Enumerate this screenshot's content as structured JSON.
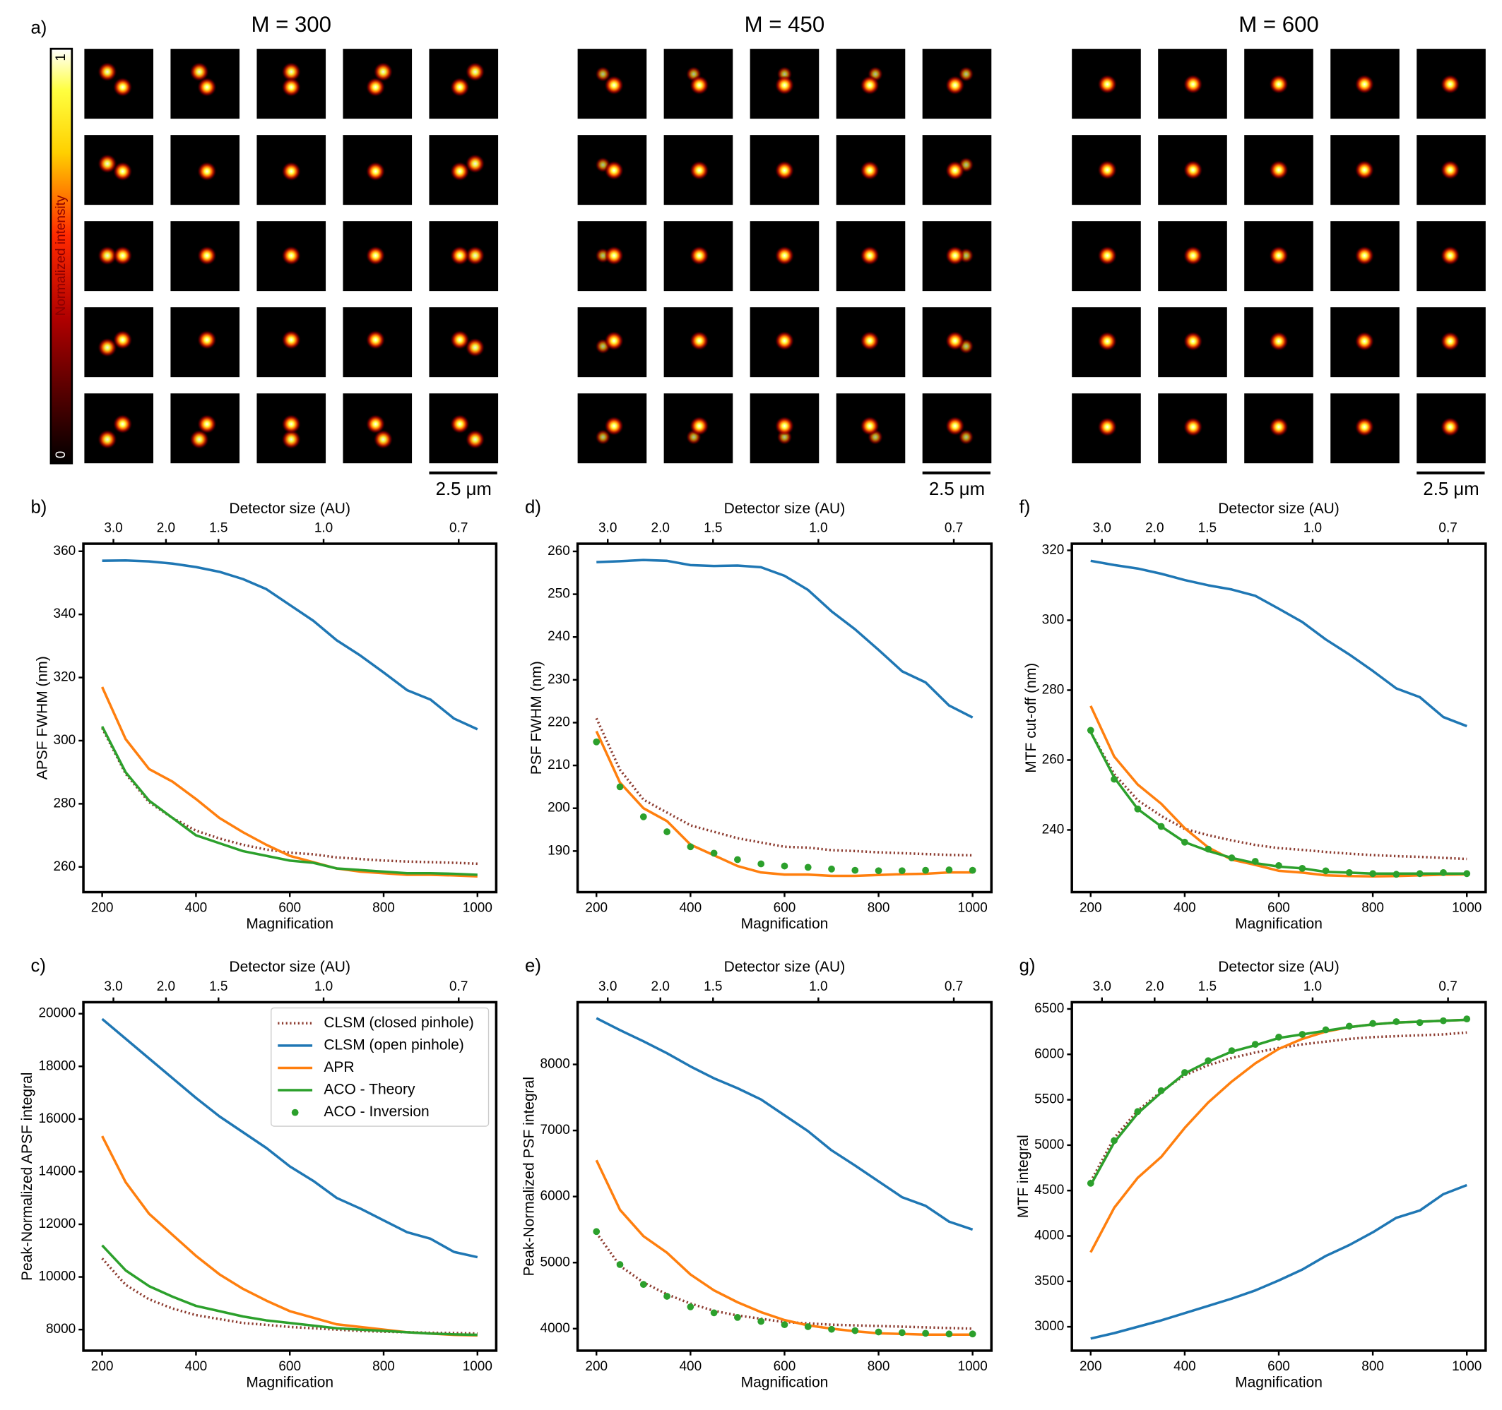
{
  "image_grid": {
    "label": "a)",
    "titles": [
      "M = 300",
      "M = 450",
      "M = 600"
    ],
    "colorbar": {
      "label": "Normalized intensity",
      "ticks": [
        0,
        1
      ]
    },
    "scale_bars": [
      "2.5 μm",
      "2.5 μm",
      "2.5 μm"
    ]
  },
  "chart_data": [
    {
      "type": "line",
      "label": "b)",
      "xlabel": "Magnification",
      "ylabel": "APSF FWHM (nm)",
      "x2label": "Detector size (AU)",
      "x": [
        200,
        250,
        300,
        350,
        400,
        450,
        500,
        550,
        600,
        650,
        700,
        750,
        800,
        850,
        900,
        950,
        1000
      ],
      "xlim": [
        160,
        1040
      ],
      "xticks": [
        200,
        400,
        600,
        800,
        1000
      ],
      "x2ticks": [
        {
          "value": 224,
          "label": "3.0"
        },
        {
          "value": 336,
          "label": "2.0"
        },
        {
          "value": 448,
          "label": "1.5"
        },
        {
          "value": 672,
          "label": "1.0"
        },
        {
          "value": 960,
          "label": "0.7"
        }
      ],
      "ylim": [
        252,
        362.4
      ],
      "yticks": [
        260,
        280,
        300,
        320,
        340,
        360
      ],
      "series": [
        {
          "color": "#8c3b2f",
          "style": "dotted",
          "values": [
            304,
            289.5,
            280.5,
            275.5,
            271.5,
            269,
            267,
            265.5,
            264.5,
            264,
            263,
            262.5,
            262,
            261.7,
            261.5,
            261.3,
            261
          ]
        },
        {
          "color": "#1f77b4",
          "style": "solid",
          "values": [
            357,
            357.1,
            356.8,
            356.1,
            355,
            353.5,
            351.2,
            348,
            343,
            338,
            331.8,
            327,
            321.6,
            316,
            313,
            307,
            303.6
          ]
        },
        {
          "color": "#ff7f0e",
          "style": "solid",
          "values": [
            317,
            300.5,
            291,
            287,
            281.5,
            275.5,
            271,
            267,
            263.5,
            261.5,
            259.5,
            258.5,
            258,
            257.5,
            257.5,
            257.3,
            257
          ]
        },
        {
          "color": "#2ca02c",
          "style": "solid",
          "values": [
            304.5,
            290,
            281,
            275.5,
            270,
            267.5,
            265,
            263.5,
            262,
            261.3,
            259.5,
            259,
            258.5,
            258,
            258,
            257.8,
            257.5
          ]
        }
      ]
    },
    {
      "type": "line",
      "label": "c)",
      "xlabel": "Magnification",
      "ylabel": "Peak-Normalized APSF integral",
      "x2label": "Detector size (AU)",
      "x": [
        200,
        250,
        300,
        350,
        400,
        450,
        500,
        550,
        600,
        650,
        700,
        750,
        800,
        850,
        900,
        950,
        1000
      ],
      "xlim": [
        160,
        1040
      ],
      "xticks": [
        200,
        400,
        600,
        800,
        1000
      ],
      "x2ticks": [
        {
          "value": 224,
          "label": "3.0"
        },
        {
          "value": 336,
          "label": "2.0"
        },
        {
          "value": 448,
          "label": "1.5"
        },
        {
          "value": 672,
          "label": "1.0"
        },
        {
          "value": 960,
          "label": "0.7"
        }
      ],
      "ylim": [
        7200,
        20436
      ],
      "yticks": [
        8000,
        10000,
        12000,
        14000,
        16000,
        18000,
        20000
      ],
      "legend": "upper right",
      "series": [
        {
          "name": "CLSM (closed pinhole)",
          "color": "#8c3b2f",
          "style": "dotted",
          "values": [
            10700,
            9700,
            9150,
            8800,
            8550,
            8400,
            8250,
            8180,
            8100,
            8050,
            8000,
            7950,
            7920,
            7900,
            7880,
            7870,
            7850
          ]
        },
        {
          "name": "CLSM (open pinhole)",
          "color": "#1f77b4",
          "style": "solid",
          "values": [
            19800,
            19050,
            18300,
            17550,
            16800,
            16100,
            15500,
            14900,
            14200,
            13650,
            13000,
            12600,
            12150,
            11700,
            11450,
            10950,
            10750
          ]
        },
        {
          "name": "APR",
          "color": "#ff7f0e",
          "style": "solid",
          "values": [
            15350,
            13600,
            12400,
            11600,
            10800,
            10100,
            9550,
            9100,
            8700,
            8450,
            8200,
            8100,
            8000,
            7900,
            7850,
            7800,
            7780
          ]
        },
        {
          "name": "ACO - Theory",
          "color": "#2ca02c",
          "style": "solid",
          "values": [
            11200,
            10250,
            9650,
            9250,
            8900,
            8700,
            8500,
            8350,
            8250,
            8150,
            8050,
            8000,
            7950,
            7900,
            7850,
            7820,
            7800
          ]
        },
        {
          "name": "ACO - Inversion",
          "color": "#2ca02c",
          "style": "markers",
          "values": [
            null,
            null,
            null,
            null,
            null,
            null,
            null,
            null,
            null,
            null,
            null,
            null,
            null,
            null,
            null,
            null,
            null
          ]
        }
      ]
    },
    {
      "type": "line",
      "label": "d)",
      "xlabel": "Magnification",
      "ylabel": "PSF FWHM (nm)",
      "x2label": "Detector size (AU)",
      "x": [
        200,
        250,
        300,
        350,
        400,
        450,
        500,
        550,
        600,
        650,
        700,
        750,
        800,
        850,
        900,
        950,
        1000
      ],
      "xlim": [
        160,
        1040
      ],
      "xticks": [
        200,
        400,
        600,
        800,
        1000
      ],
      "x2ticks": [
        {
          "value": 224,
          "label": "3.0"
        },
        {
          "value": 336,
          "label": "2.0"
        },
        {
          "value": 448,
          "label": "1.5"
        },
        {
          "value": 672,
          "label": "1.0"
        },
        {
          "value": 960,
          "label": "0.7"
        }
      ],
      "ylim": [
        180.4,
        261.8
      ],
      "yticks": [
        190,
        200,
        210,
        220,
        230,
        240,
        250,
        260
      ],
      "series": [
        {
          "color": "#8c3b2f",
          "style": "dotted",
          "values": [
            221,
            209,
            202,
            199,
            196,
            194.5,
            193,
            192,
            191,
            190.8,
            190.2,
            190,
            189.7,
            189.5,
            189.3,
            189.1,
            189
          ]
        },
        {
          "color": "#1f77b4",
          "style": "solid",
          "values": [
            257.5,
            257.7,
            258,
            257.8,
            256.8,
            256.6,
            256.7,
            256.3,
            254.3,
            251,
            246,
            241.8,
            237,
            232,
            229.4,
            224,
            221.2
          ]
        },
        {
          "color": "#ff7f0e",
          "style": "solid",
          "values": [
            218,
            206,
            200,
            197,
            191.5,
            189,
            186.5,
            185,
            184.5,
            184.5,
            184.2,
            184.2,
            184.4,
            184.6,
            184.7,
            185,
            185
          ]
        },
        {
          "color": "#2ca02c",
          "style": "markers",
          "values": [
            215.5,
            205,
            198,
            194.5,
            191,
            189.5,
            188,
            187,
            186.5,
            186.2,
            185.8,
            185.5,
            185.4,
            185.4,
            185.5,
            185.6,
            185.5
          ]
        }
      ]
    },
    {
      "type": "line",
      "label": "e)",
      "xlabel": "Magnification",
      "ylabel": "Peak-Normalized PSF integral",
      "x2label": "Detector size (AU)",
      "x": [
        200,
        250,
        300,
        350,
        400,
        450,
        500,
        550,
        600,
        650,
        700,
        750,
        800,
        850,
        900,
        950,
        1000
      ],
      "xlim": [
        160,
        1040
      ],
      "xticks": [
        200,
        400,
        600,
        800,
        1000
      ],
      "x2ticks": [
        {
          "value": 224,
          "label": "3.0"
        },
        {
          "value": 336,
          "label": "2.0"
        },
        {
          "value": 448,
          "label": "1.5"
        },
        {
          "value": 672,
          "label": "1.0"
        },
        {
          "value": 960,
          "label": "0.7"
        }
      ],
      "ylim": [
        3667,
        8942
      ],
      "yticks": [
        4000,
        5000,
        6000,
        7000,
        8000
      ],
      "series": [
        {
          "color": "#8c3b2f",
          "style": "dotted",
          "values": [
            5450,
            4950,
            4700,
            4520,
            4380,
            4270,
            4200,
            4150,
            4100,
            4080,
            4060,
            4050,
            4040,
            4030,
            4020,
            4010,
            4000
          ]
        },
        {
          "color": "#1f77b4",
          "style": "solid",
          "values": [
            8700,
            8520,
            8350,
            8170,
            7970,
            7790,
            7640,
            7470,
            7230,
            6990,
            6700,
            6470,
            6230,
            5990,
            5860,
            5620,
            5500
          ]
        },
        {
          "color": "#ff7f0e",
          "style": "solid",
          "values": [
            6550,
            5800,
            5400,
            5150,
            4820,
            4580,
            4400,
            4250,
            4130,
            4050,
            4000,
            3960,
            3930,
            3920,
            3910,
            3910,
            3910
          ]
        },
        {
          "color": "#2ca02c",
          "style": "markers",
          "values": [
            5470,
            4970,
            4670,
            4490,
            4330,
            4240,
            4170,
            4110,
            4060,
            4030,
            3990,
            3970,
            3950,
            3940,
            3930,
            3920,
            3920
          ]
        }
      ]
    },
    {
      "type": "line",
      "label": "f)",
      "xlabel": "Magnification",
      "ylabel": "MTF cut-off (nm)",
      "x2label": "Detector size (AU)",
      "x": [
        200,
        250,
        300,
        350,
        400,
        450,
        500,
        550,
        600,
        650,
        700,
        750,
        800,
        850,
        900,
        950,
        1000
      ],
      "xlim": [
        160,
        1040
      ],
      "xticks": [
        200,
        400,
        600,
        800,
        1000
      ],
      "x2ticks": [
        {
          "value": 224,
          "label": "3.0"
        },
        {
          "value": 336,
          "label": "2.0"
        },
        {
          "value": 448,
          "label": "1.5"
        },
        {
          "value": 672,
          "label": "1.0"
        },
        {
          "value": 960,
          "label": "0.7"
        }
      ],
      "ylim": [
        222.2,
        321.9
      ],
      "yticks": [
        240,
        260,
        280,
        300,
        320
      ],
      "series": [
        {
          "color": "#8c3b2f",
          "style": "dotted",
          "values": [
            268,
            256,
            248.5,
            244,
            240.3,
            238.5,
            237,
            235.7,
            234.8,
            234.3,
            233.7,
            233.2,
            232.8,
            232.5,
            232.3,
            232,
            231.7
          ]
        },
        {
          "color": "#1f77b4",
          "style": "solid",
          "values": [
            317,
            315.8,
            314.8,
            313.3,
            311.5,
            310,
            308.8,
            307,
            303.3,
            299.5,
            294.5,
            290.2,
            285.5,
            280.5,
            278,
            272.3,
            269.7
          ]
        },
        {
          "color": "#ff7f0e",
          "style": "solid",
          "values": [
            275.5,
            261,
            253,
            247.5,
            240.5,
            235,
            231.5,
            230,
            228.3,
            227.8,
            227,
            226.8,
            226.7,
            226.8,
            227,
            227.2,
            227.3
          ]
        },
        {
          "color": "#2ca02c",
          "style": "solid",
          "values": [
            268,
            255,
            246,
            241,
            236.5,
            234,
            232,
            230.5,
            229.5,
            229,
            228,
            227.8,
            227.5,
            227.5,
            227.5,
            227.5,
            227.5
          ]
        },
        {
          "color": "#2ca02c",
          "style": "markers",
          "values": [
            268.5,
            254.5,
            246,
            241,
            236.5,
            234.5,
            232,
            231,
            229.8,
            229,
            228.3,
            227.8,
            227.5,
            227.3,
            227.5,
            227.8,
            227.5
          ]
        }
      ]
    },
    {
      "type": "line",
      "label": "g)",
      "xlabel": "Magnification",
      "ylabel": "MTF integral",
      "x2label": "Detector size (AU)",
      "x": [
        200,
        250,
        300,
        350,
        400,
        450,
        500,
        550,
        600,
        650,
        700,
        750,
        800,
        850,
        900,
        950,
        1000
      ],
      "xlim": [
        160,
        1040
      ],
      "xticks": [
        200,
        400,
        600,
        800,
        1000
      ],
      "x2ticks": [
        {
          "value": 224,
          "label": "3.0"
        },
        {
          "value": 336,
          "label": "2.0"
        },
        {
          "value": 448,
          "label": "1.5"
        },
        {
          "value": 672,
          "label": "1.0"
        },
        {
          "value": 960,
          "label": "0.7"
        }
      ],
      "ylim": [
        2737,
        6574
      ],
      "yticks": [
        3000,
        3500,
        4000,
        4500,
        5000,
        5500,
        6000,
        6500
      ],
      "series": [
        {
          "color": "#8c3b2f",
          "style": "dotted",
          "values": [
            4600,
            5080,
            5380,
            5590,
            5770,
            5880,
            5960,
            6020,
            6070,
            6110,
            6140,
            6170,
            6190,
            6200,
            6210,
            6220,
            6240
          ]
        },
        {
          "color": "#1f77b4",
          "style": "solid",
          "values": [
            2870,
            2930,
            3000,
            3070,
            3150,
            3230,
            3310,
            3400,
            3510,
            3630,
            3780,
            3900,
            4040,
            4200,
            4280,
            4460,
            4560
          ]
        },
        {
          "color": "#ff7f0e",
          "style": "solid",
          "values": [
            3820,
            4310,
            4640,
            4870,
            5190,
            5470,
            5700,
            5900,
            6060,
            6170,
            6250,
            6300,
            6330,
            6350,
            6360,
            6370,
            6380
          ]
        },
        {
          "color": "#2ca02c",
          "style": "solid",
          "values": [
            4560,
            5030,
            5350,
            5580,
            5790,
            5920,
            6030,
            6100,
            6180,
            6220,
            6260,
            6300,
            6330,
            6350,
            6360,
            6370,
            6380
          ]
        },
        {
          "color": "#2ca02c",
          "style": "markers",
          "values": [
            4580,
            5050,
            5370,
            5600,
            5800,
            5930,
            6040,
            6110,
            6190,
            6220,
            6270,
            6310,
            6340,
            6360,
            6350,
            6370,
            6390
          ]
        }
      ]
    }
  ]
}
